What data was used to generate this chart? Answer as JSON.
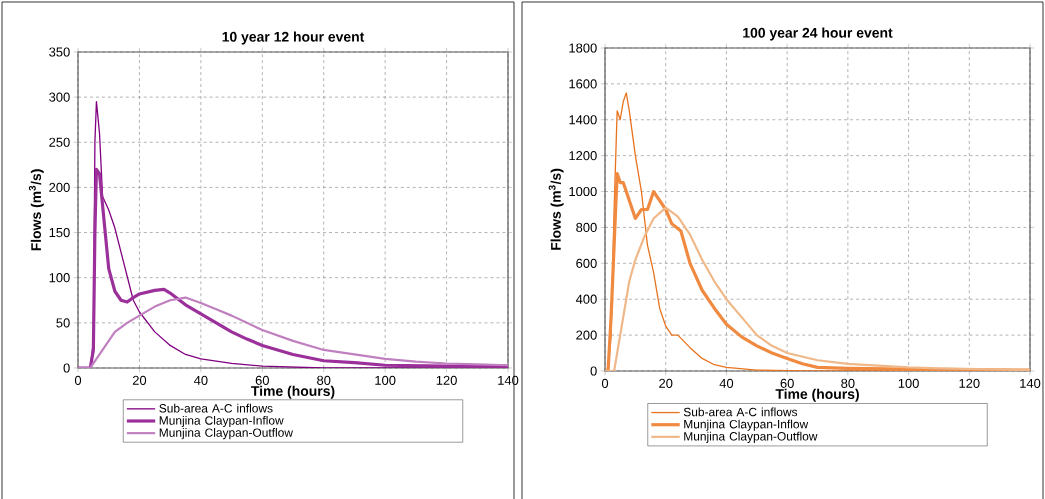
{
  "chart_data": [
    {
      "type": "line",
      "title": "10 year 12 hour event",
      "xlabel": "Time (hours)",
      "ylabel": "Flows (m$^{3}$/s)",
      "xlim": [
        0,
        140
      ],
      "xticks": [
        0,
        20,
        40,
        60,
        80,
        100,
        120,
        140
      ],
      "ylim": [
        0,
        350
      ],
      "yticks": [
        0,
        50,
        100,
        150,
        200,
        250,
        300,
        350
      ],
      "grid": true,
      "legend": "bottom",
      "series": [
        {
          "name": "Sub-area A-C inflows",
          "color": "#800080",
          "x": [
            0,
            4,
            5,
            5.5,
            6,
            7,
            8,
            10,
            12,
            15,
            18,
            20,
            25,
            30,
            35,
            40,
            50,
            60,
            70,
            80,
            140
          ],
          "values": [
            0,
            0,
            30,
            250,
            295,
            260,
            190,
            175,
            155,
            115,
            75,
            62,
            40,
            25,
            15,
            10,
            5,
            2,
            1,
            0,
            0
          ]
        },
        {
          "name": "Munjina Claypan-Inflow",
          "color": "#9b309b",
          "x": [
            0,
            4,
            5,
            5.5,
            6,
            7,
            8,
            10,
            12,
            14,
            16,
            18,
            20,
            25,
            28,
            30,
            35,
            40,
            45,
            50,
            55,
            60,
            70,
            80,
            90,
            100,
            120,
            140
          ],
          "values": [
            0,
            0,
            20,
            150,
            220,
            215,
            180,
            110,
            85,
            75,
            73,
            78,
            82,
            86,
            87,
            83,
            70,
            60,
            50,
            40,
            32,
            25,
            15,
            8,
            6,
            3,
            2,
            2
          ]
        },
        {
          "name": "Munjina Claypan-Outflow",
          "color": "#c080c0",
          "x": [
            0,
            4,
            5,
            8,
            12,
            16,
            20,
            25,
            30,
            35,
            40,
            45,
            50,
            55,
            60,
            70,
            80,
            90,
            100,
            110,
            120,
            130,
            140
          ],
          "values": [
            0,
            0,
            5,
            20,
            40,
            50,
            58,
            68,
            75,
            78,
            72,
            65,
            58,
            50,
            42,
            30,
            20,
            15,
            10,
            7,
            5,
            4,
            3
          ]
        }
      ]
    },
    {
      "type": "line",
      "title": "100 year 24 hour event",
      "xlabel": "Time (hours)",
      "ylabel": "Flows (m$^{3}$/s)",
      "xlim": [
        0,
        140
      ],
      "xticks": [
        0,
        20,
        40,
        60,
        80,
        100,
        120,
        140
      ],
      "ylim": [
        0,
        1800
      ],
      "yticks": [
        0,
        200,
        400,
        600,
        800,
        1000,
        1200,
        1400,
        1600,
        1800
      ],
      "grid": true,
      "legend": "bottom",
      "series": [
        {
          "name": "Sub-area A-C inflows",
          "color": "#e8731e",
          "x": [
            0,
            1,
            2,
            3,
            4,
            5,
            6,
            7,
            8,
            10,
            12,
            14,
            16,
            18,
            20,
            22,
            24,
            28,
            32,
            36,
            40,
            50,
            60,
            70,
            140
          ],
          "values": [
            0,
            0,
            200,
            900,
            1450,
            1400,
            1500,
            1550,
            1450,
            1200,
            1000,
            700,
            550,
            350,
            250,
            200,
            200,
            130,
            70,
            35,
            20,
            5,
            2,
            0,
            0
          ]
        },
        {
          "name": "Munjina Claypan-Inflow",
          "color": "#f08a40",
          "x": [
            0,
            1,
            2,
            3,
            4,
            5,
            6,
            8,
            10,
            12,
            14,
            16,
            18,
            20,
            22,
            25,
            28,
            32,
            36,
            40,
            45,
            50,
            55,
            60,
            65,
            70,
            80,
            100,
            140
          ],
          "values": [
            0,
            0,
            300,
            700,
            1100,
            1050,
            1050,
            950,
            850,
            900,
            900,
            1000,
            950,
            900,
            820,
            780,
            600,
            450,
            350,
            260,
            190,
            140,
            100,
            70,
            40,
            20,
            15,
            10,
            5
          ]
        },
        {
          "name": "Munjina Claypan-Outflow",
          "color": "#f0b888",
          "x": [
            0,
            3,
            5,
            8,
            10,
            13,
            16,
            20,
            24,
            28,
            32,
            36,
            40,
            45,
            50,
            55,
            60,
            70,
            80,
            90,
            100,
            110,
            140
          ],
          "values": [
            0,
            0,
            200,
            500,
            620,
            750,
            850,
            910,
            860,
            760,
            620,
            500,
            400,
            300,
            200,
            140,
            100,
            60,
            40,
            30,
            20,
            15,
            5
          ]
        }
      ]
    }
  ]
}
